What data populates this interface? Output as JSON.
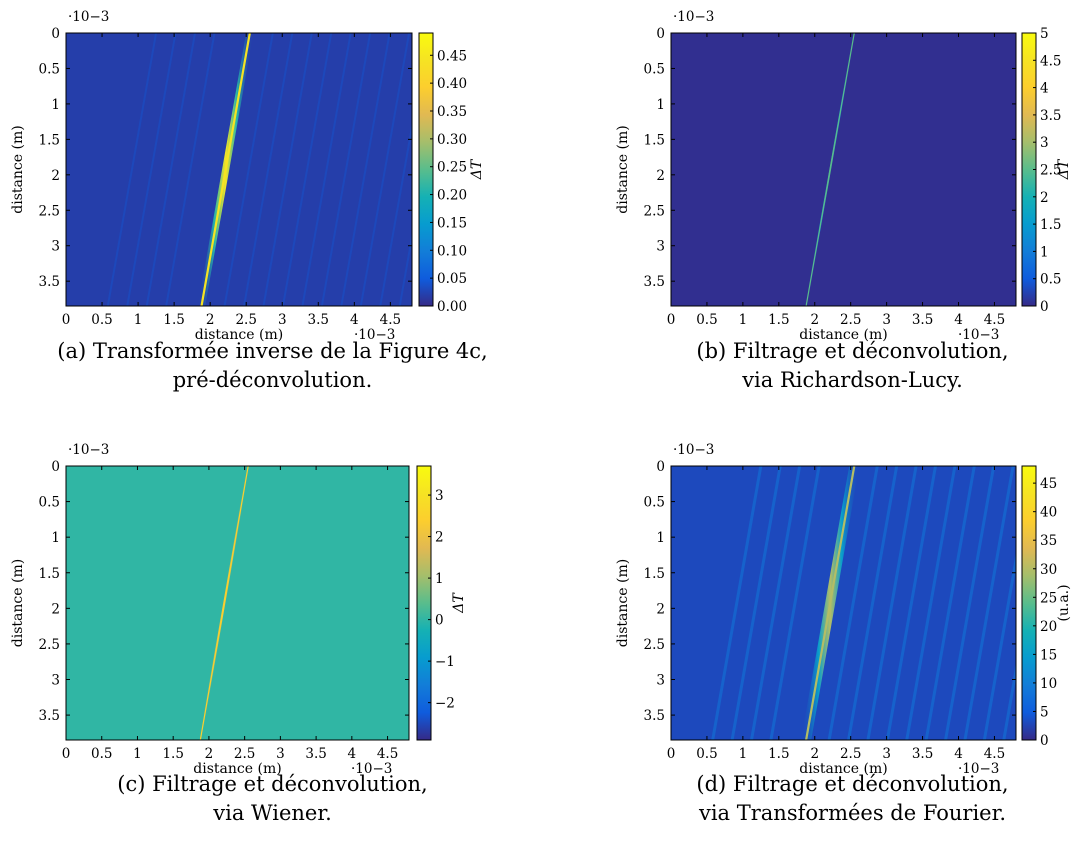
{
  "chart_data": [
    {
      "type": "heatmap",
      "caption_line1": "(a) Transformée inverse de la Figure 4c,",
      "caption_line2": "pré-déconvolution.",
      "xlabel": "distance (m)",
      "ylabel": "distance (m)",
      "x_multiplier": "·10−3",
      "y_multiplier": "·10−3",
      "xlim": [
        0,
        4.8
      ],
      "ylim": [
        0,
        3.85
      ],
      "xticks": [
        "0",
        "0.5",
        "1",
        "1.5",
        "2",
        "2.5",
        "3",
        "3.5",
        "4",
        "4.5"
      ],
      "yticks": [
        "0",
        "0.5",
        "1",
        "1.5",
        "2",
        "2.5",
        "3",
        "3.5"
      ],
      "colorbar_label": "ΔT",
      "colorbar_range": [
        0,
        0.49
      ],
      "colorbar_ticks": [
        "0.00",
        "0.05",
        "0.10",
        "0.15",
        "0.20",
        "0.25",
        "0.30",
        "0.35",
        "0.40",
        "0.45"
      ],
      "colormap": "parula",
      "background_value": 0.02,
      "line": {
        "x_top": 2.55,
        "x_bottom": 1.88,
        "peak": 0.44,
        "width": 0.05
      }
    },
    {
      "type": "heatmap",
      "caption_line1": "(b) Filtrage et déconvolution,",
      "caption_line2": "via Richardson-Lucy.",
      "xlabel": "distance (m)",
      "ylabel": "distance (m)",
      "x_multiplier": "·10−3",
      "y_multiplier": "·10−3",
      "xlim": [
        0,
        4.8
      ],
      "ylim": [
        0,
        3.85
      ],
      "xticks": [
        "0",
        "0.5",
        "1",
        "1.5",
        "2",
        "2.5",
        "3",
        "3.5",
        "4",
        "4.5"
      ],
      "yticks": [
        "0",
        "0.5",
        "1",
        "1.5",
        "2",
        "2.5",
        "3",
        "3.5"
      ],
      "colorbar_label": "ΔT",
      "colorbar_range": [
        0,
        5
      ],
      "colorbar_ticks": [
        "0",
        "0.5",
        "1",
        "1.5",
        "2",
        "2.5",
        "3",
        "3.5",
        "4",
        "4.5",
        "5"
      ],
      "colormap": "parula",
      "background_value": 0.05,
      "line": {
        "x_top": 2.55,
        "x_bottom": 1.88,
        "peak": 2.5,
        "width": 0.012
      }
    },
    {
      "type": "heatmap",
      "caption_line1": "(c) Filtrage et déconvolution,",
      "caption_line2": "via Wiener.",
      "xlabel": "distance (m)",
      "ylabel": "distance (m)",
      "x_multiplier": "·10−3",
      "y_multiplier": "·10−3",
      "xlim": [
        0,
        4.8
      ],
      "ylim": [
        0,
        3.85
      ],
      "xticks": [
        "0",
        "0.5",
        "1",
        "1.5",
        "2",
        "2.5",
        "3",
        "3.5",
        "4",
        "4.5"
      ],
      "yticks": [
        "0",
        "0.5",
        "1",
        "1.5",
        "2",
        "2.5",
        "3",
        "3.5"
      ],
      "colorbar_label": "ΔT",
      "colorbar_range": [
        -2.9,
        3.7
      ],
      "colorbar_ticks": [
        "−2",
        "−1",
        "0",
        "1",
        "2",
        "3"
      ],
      "colorbar_tick_values": [
        -2,
        -1,
        0,
        1,
        2,
        3
      ],
      "colormap": "parula",
      "background_value": 0.0,
      "line": {
        "x_top": 2.55,
        "x_bottom": 1.88,
        "peak": 2.4,
        "width": 0.015
      }
    },
    {
      "type": "heatmap",
      "caption_line1": "(d) Filtrage et déconvolution,",
      "caption_line2": "via Transformées de Fourier.",
      "xlabel": "distance (m)",
      "ylabel": "distance (m)",
      "x_multiplier": "·10−3",
      "y_multiplier": "·10−3",
      "xlim": [
        0,
        4.8
      ],
      "ylim": [
        0,
        3.85
      ],
      "xticks": [
        "0",
        "0.5",
        "1",
        "1.5",
        "2",
        "2.5",
        "3",
        "3.5",
        "4",
        "4.5"
      ],
      "yticks": [
        "0",
        "0.5",
        "1",
        "1.5",
        "2",
        "2.5",
        "3",
        "3.5"
      ],
      "colorbar_label": "(u.a.)",
      "colorbar_range": [
        0,
        48
      ],
      "colorbar_ticks": [
        "0",
        "5",
        "10",
        "15",
        "20",
        "25",
        "30",
        "35",
        "40",
        "45"
      ],
      "colormap": "parula",
      "background_value": 3,
      "line": {
        "x_top": 2.55,
        "x_bottom": 1.88,
        "peak": 30,
        "width": 0.07
      }
    }
  ]
}
